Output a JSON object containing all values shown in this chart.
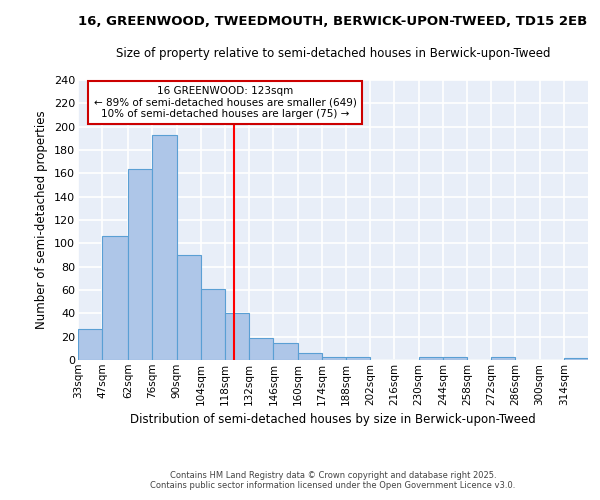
{
  "title1": "16, GREENWOOD, TWEEDMOUTH, BERWICK-UPON-TWEED, TD15 2EB",
  "title2": "Size of property relative to semi-detached houses in Berwick-upon-Tweed",
  "xlabel": "Distribution of semi-detached houses by size in Berwick-upon-Tweed",
  "ylabel": "Number of semi-detached properties",
  "bin_edges": [
    33,
    47,
    62,
    76,
    90,
    104,
    118,
    132,
    146,
    160,
    174,
    188,
    202,
    216,
    230,
    244,
    258,
    272,
    286,
    300,
    314
  ],
  "bar_heights": [
    27,
    106,
    164,
    193,
    90,
    61,
    40,
    19,
    15,
    6,
    3,
    3,
    0,
    0,
    3,
    3,
    0,
    3,
    0,
    0,
    2
  ],
  "bar_color": "#aec6e8",
  "bar_edge_color": "#5a9fd4",
  "red_line_x": 123,
  "annotation_title": "16 GREENWOOD: 123sqm",
  "annotation_line1": "← 89% of semi-detached houses are smaller (649)",
  "annotation_line2": "10% of semi-detached houses are larger (75) →",
  "annotation_box_color": "#ffffff",
  "annotation_box_edge": "#cc0000",
  "ylim": [
    0,
    240
  ],
  "yticks": [
    0,
    20,
    40,
    60,
    80,
    100,
    120,
    140,
    160,
    180,
    200,
    220,
    240
  ],
  "footer": "Contains HM Land Registry data © Crown copyright and database right 2025.\nContains public sector information licensed under the Open Government Licence v3.0.",
  "bg_color": "#e8eef8",
  "grid_color": "#ffffff",
  "tick_labels": [
    "33sqm",
    "47sqm",
    "62sqm",
    "76sqm",
    "90sqm",
    "104sqm",
    "118sqm",
    "132sqm",
    "146sqm",
    "160sqm",
    "174sqm",
    "188sqm",
    "202sqm",
    "216sqm",
    "230sqm",
    "244sqm",
    "258sqm",
    "272sqm",
    "286sqm",
    "300sqm",
    "314sqm"
  ]
}
